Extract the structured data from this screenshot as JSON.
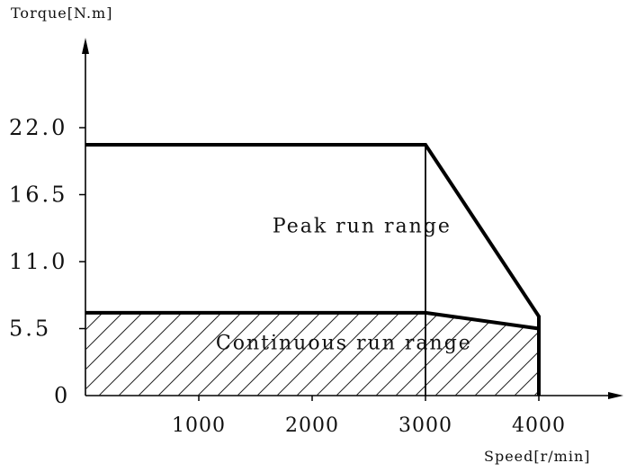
{
  "chart_data": {
    "type": "area",
    "title": "",
    "ylabel": "Torque[N.m]",
    "xlabel": "Speed[r/min]",
    "xlim": [
      0,
      4000
    ],
    "ylim": [
      0,
      22.0
    ],
    "x_ticks": [
      {
        "value": 1000,
        "label": "1000"
      },
      {
        "value": 2000,
        "label": "2000"
      },
      {
        "value": 3000,
        "label": "3000"
      },
      {
        "value": 4000,
        "label": "4000"
      }
    ],
    "y_ticks": [
      {
        "value": 0,
        "label": "0"
      },
      {
        "value": 5.5,
        "label": "5.5"
      },
      {
        "value": 11.0,
        "label": "11.0"
      },
      {
        "value": 16.5,
        "label": "16.5"
      },
      {
        "value": 22.0,
        "label": "22.0"
      }
    ],
    "grid": false,
    "series": [
      {
        "name": "Peak run range",
        "points": [
          [
            0,
            20.6
          ],
          [
            3000,
            20.6
          ],
          [
            4000,
            6.5
          ],
          [
            4000,
            0
          ]
        ]
      },
      {
        "name": "Continuous run range",
        "points": [
          [
            0,
            6.8
          ],
          [
            3000,
            6.8
          ],
          [
            4000,
            5.5
          ],
          [
            4000,
            0
          ]
        ],
        "fill": "hatched"
      }
    ],
    "annotations": [
      {
        "text": "Peak run range",
        "x": 1650,
        "y": 13.4
      },
      {
        "text": "Continuous run range",
        "x": 1150,
        "y": 3.8
      }
    ]
  }
}
